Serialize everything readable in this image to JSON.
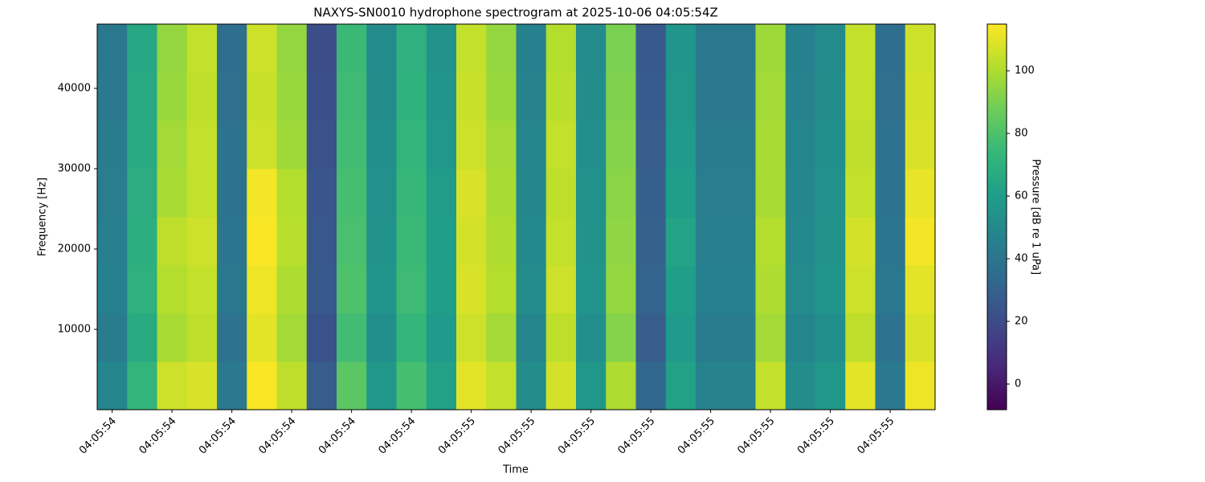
{
  "chart_data": {
    "type": "heatmap",
    "title": "NAXYS-SN0010 hydrophone spectrogram at 2025-10-06 04:05:54Z",
    "x_label": "Time",
    "y_label": "Frequency [Hz]",
    "colorbar_label": "Pressure [dB re 1 uPa]",
    "colormap": "viridis",
    "time_bins": [
      54.375,
      54.425,
      54.475,
      54.525,
      54.575,
      54.625,
      54.675,
      54.725,
      54.775,
      54.825,
      54.875,
      54.925,
      54.975,
      55.025,
      55.075,
      55.125,
      55.175,
      55.225,
      55.275,
      55.325,
      55.375,
      55.425,
      55.475,
      55.525,
      55.575,
      55.625,
      55.675,
      55.725,
      55.775
    ],
    "freq_bins": [
      0,
      6000,
      12000,
      18000,
      24000,
      30000,
      36000,
      42000,
      48000
    ],
    "z": [
      [
        48,
        72,
        106,
        108,
        42,
        114,
        103,
        28,
        83,
        57,
        78,
        62,
        110,
        104,
        52,
        107,
        57,
        100,
        33,
        62,
        47,
        47,
        104,
        52,
        57,
        110,
        42,
        112
      ],
      [
        43,
        67,
        99,
        103,
        38,
        110,
        98,
        23,
        77,
        53,
        73,
        58,
        106,
        98,
        48,
        103,
        53,
        92,
        28,
        58,
        43,
        43,
        98,
        48,
        53,
        103,
        38,
        108
      ],
      [
        46,
        70,
        101,
        104,
        41,
        112,
        100,
        26,
        80,
        56,
        76,
        61,
        108,
        101,
        51,
        106,
        56,
        95,
        31,
        61,
        46,
        46,
        100,
        51,
        56,
        106,
        41,
        110
      ],
      [
        45,
        69,
        103,
        106,
        40,
        114,
        102,
        25,
        79,
        55,
        75,
        60,
        107,
        100,
        50,
        104,
        55,
        94,
        30,
        63,
        45,
        45,
        101,
        50,
        55,
        107,
        40,
        113
      ],
      [
        44,
        68,
        99,
        104,
        39,
        113,
        101,
        24,
        78,
        54,
        74,
        59,
        108,
        99,
        49,
        103,
        54,
        93,
        29,
        60,
        44,
        44,
        99,
        49,
        54,
        104,
        39,
        111
      ],
      [
        43,
        67,
        98,
        104,
        38,
        106,
        97,
        23,
        77,
        53,
        72,
        57,
        106,
        98,
        48,
        104,
        53,
        92,
        28,
        58,
        43,
        43,
        99,
        48,
        53,
        103,
        38,
        108
      ],
      [
        42,
        66,
        96,
        103,
        37,
        105,
        96,
        22,
        76,
        52,
        71,
        56,
        105,
        96,
        47,
        102,
        52,
        91,
        27,
        57,
        42,
        42,
        98,
        47,
        52,
        104,
        37,
        107
      ],
      [
        41,
        65,
        95,
        104,
        36,
        106,
        95,
        21,
        75,
        51,
        70,
        55,
        104,
        95,
        46,
        101,
        51,
        90,
        26,
        56,
        41,
        41,
        97,
        46,
        51,
        104,
        36,
        106
      ]
    ],
    "xlim": [
      54.375,
      55.775
    ],
    "ylim": [
      0,
      48000
    ],
    "clim": [
      -8.2,
      114.9
    ],
    "xticks": [
      {
        "value": 54.4,
        "label": "04:05:54"
      },
      {
        "value": 54.5,
        "label": "04:05:54"
      },
      {
        "value": 54.6,
        "label": "04:05:54"
      },
      {
        "value": 54.7,
        "label": "04:05:54"
      },
      {
        "value": 54.8,
        "label": "04:05:54"
      },
      {
        "value": 54.9,
        "label": "04:05:54"
      },
      {
        "value": 55.0,
        "label": "04:05:55"
      },
      {
        "value": 55.1,
        "label": "04:05:55"
      },
      {
        "value": 55.2,
        "label": "04:05:55"
      },
      {
        "value": 55.3,
        "label": "04:05:55"
      },
      {
        "value": 55.4,
        "label": "04:05:55"
      },
      {
        "value": 55.5,
        "label": "04:05:55"
      },
      {
        "value": 55.6,
        "label": "04:05:55"
      },
      {
        "value": 55.7,
        "label": "04:05:55"
      }
    ],
    "yticks": [
      10000,
      20000,
      30000,
      40000
    ],
    "cticks": [
      0,
      20,
      40,
      60,
      80,
      100
    ]
  }
}
